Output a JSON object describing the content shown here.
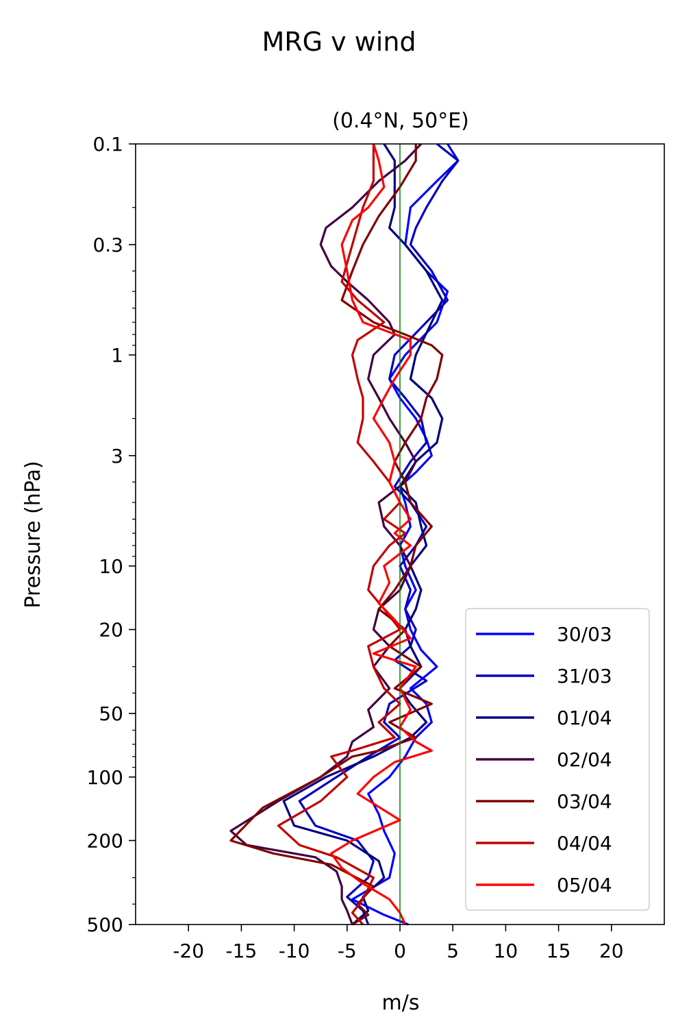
{
  "figure": {
    "suptitle": "MRG v wind"
  },
  "chart_data": {
    "type": "line",
    "title": "(0.4°N, 50°E)",
    "xlabel": "m/s",
    "ylabel": "Pressure (hPa)",
    "xlim": [
      -25,
      25
    ],
    "ylim": [
      500,
      0.1
    ],
    "yscale": "log",
    "y_inverted": true,
    "grid": false,
    "legend_position": "lower-right",
    "xticks": [
      -20,
      -15,
      -10,
      -5,
      0,
      5,
      10,
      15,
      20
    ],
    "xtick_labels": [
      "-20",
      "-15",
      "-10",
      "-5",
      "0",
      "5",
      "10",
      "15",
      "20"
    ],
    "yticks": [
      0.1,
      0.3,
      1,
      3,
      10,
      20,
      50,
      100,
      200,
      500
    ],
    "ytick_labels": [
      "0.1",
      "0.3",
      "1",
      "3",
      "10",
      "20",
      "50",
      "100",
      "200",
      "500"
    ],
    "zero_line": {
      "x": 0,
      "color": "#008000"
    },
    "series": [
      {
        "name": "30/03",
        "color": "#0000ff",
        "points": [
          [
            4.5,
            0.1
          ],
          [
            5.5,
            0.12
          ],
          [
            3.5,
            0.15
          ],
          [
            1.0,
            0.2
          ],
          [
            0.5,
            0.3
          ],
          [
            2.5,
            0.4
          ],
          [
            4.5,
            0.5
          ],
          [
            3.5,
            0.7
          ],
          [
            0.5,
            1.0
          ],
          [
            -1.0,
            1.3
          ],
          [
            0.0,
            1.6
          ],
          [
            1.5,
            2.0
          ],
          [
            2.5,
            2.5
          ],
          [
            3.0,
            3.0
          ],
          [
            1.5,
            3.6
          ],
          [
            0.0,
            4.2
          ],
          [
            0.5,
            5.0
          ],
          [
            1.0,
            6.5
          ],
          [
            0.0,
            8.0
          ],
          [
            0.5,
            10.0
          ],
          [
            1.5,
            13.0
          ],
          [
            0.5,
            16.0
          ],
          [
            1.0,
            20.0
          ],
          [
            2.0,
            25.0
          ],
          [
            3.5,
            30.0
          ],
          [
            1.0,
            38.0
          ],
          [
            2.5,
            45.0
          ],
          [
            3.0,
            55.0
          ],
          [
            1.5,
            65.0
          ],
          [
            0.5,
            80.0
          ],
          [
            -1.0,
            100.0
          ],
          [
            -3.0,
            120.0
          ],
          [
            -2.0,
            150.0
          ],
          [
            -1.5,
            180.0
          ],
          [
            -0.5,
            230.0
          ],
          [
            -1.0,
            300.0
          ],
          [
            -4.5,
            380.0
          ],
          [
            -1.5,
            450.0
          ],
          [
            0.8,
            500.0
          ]
        ]
      },
      {
        "name": "31/03",
        "color": "#0000c0",
        "points": [
          [
            3.5,
            0.1
          ],
          [
            5.5,
            0.12
          ],
          [
            4.0,
            0.15
          ],
          [
            2.5,
            0.2
          ],
          [
            1.5,
            0.25
          ],
          [
            1.0,
            0.3
          ],
          [
            3.0,
            0.4
          ],
          [
            4.5,
            0.55
          ],
          [
            2.5,
            0.7
          ],
          [
            -0.5,
            1.0
          ],
          [
            -1.0,
            1.3
          ],
          [
            0.5,
            1.6
          ],
          [
            2.0,
            2.0
          ],
          [
            2.5,
            2.6
          ],
          [
            1.0,
            3.2
          ],
          [
            -0.5,
            4.2
          ],
          [
            1.0,
            5.0
          ],
          [
            2.5,
            6.5
          ],
          [
            1.5,
            8.0
          ],
          [
            0.0,
            10.0
          ],
          [
            1.0,
            13.0
          ],
          [
            0.5,
            16.0
          ],
          [
            1.5,
            20.0
          ],
          [
            1.0,
            24.0
          ],
          [
            -0.5,
            28.0
          ],
          [
            2.5,
            35.0
          ],
          [
            -1.0,
            45.0
          ],
          [
            -1.5,
            55.0
          ],
          [
            0.0,
            65.0
          ],
          [
            -3.0,
            80.0
          ],
          [
            -6.0,
            100.0
          ],
          [
            -9.5,
            130.0
          ],
          [
            -8.0,
            170.0
          ],
          [
            -4.0,
            200.0
          ],
          [
            -2.5,
            250.0
          ],
          [
            -3.0,
            300.0
          ],
          [
            -5.0,
            370.0
          ],
          [
            -3.5,
            430.0
          ],
          [
            -3.0,
            500.0
          ]
        ]
      },
      {
        "name": "01/04",
        "color": "#000080",
        "points": [
          [
            -1.5,
            0.1
          ],
          [
            -0.5,
            0.12
          ],
          [
            -0.5,
            0.15
          ],
          [
            -0.5,
            0.2
          ],
          [
            -1.0,
            0.25
          ],
          [
            0.5,
            0.3
          ],
          [
            2.5,
            0.4
          ],
          [
            4.0,
            0.55
          ],
          [
            3.0,
            0.7
          ],
          [
            1.5,
            1.0
          ],
          [
            1.0,
            1.3
          ],
          [
            3.0,
            1.6
          ],
          [
            4.0,
            2.0
          ],
          [
            3.5,
            2.6
          ],
          [
            1.5,
            3.2
          ],
          [
            0.0,
            4.2
          ],
          [
            1.5,
            5.0
          ],
          [
            2.0,
            6.5
          ],
          [
            2.5,
            8.0
          ],
          [
            1.0,
            10.0
          ],
          [
            2.0,
            13.0
          ],
          [
            1.5,
            16.0
          ],
          [
            0.5,
            20.0
          ],
          [
            1.0,
            24.0
          ],
          [
            2.0,
            30.0
          ],
          [
            0.0,
            38.0
          ],
          [
            1.0,
            45.0
          ],
          [
            2.5,
            55.0
          ],
          [
            1.0,
            65.0
          ],
          [
            -2.5,
            80.0
          ],
          [
            -7.0,
            100.0
          ],
          [
            -11.0,
            130.0
          ],
          [
            -10.0,
            170.0
          ],
          [
            -5.0,
            200.0
          ],
          [
            -2.0,
            250.0
          ],
          [
            -1.5,
            300.0
          ],
          [
            -3.5,
            370.0
          ],
          [
            -3.0,
            430.0
          ],
          [
            -4.5,
            500.0
          ]
        ]
      },
      {
        "name": "02/04",
        "color": "#400040",
        "points": [
          [
            2.0,
            0.1
          ],
          [
            0.5,
            0.12
          ],
          [
            -2.0,
            0.15
          ],
          [
            -4.5,
            0.2
          ],
          [
            -7.0,
            0.25
          ],
          [
            -7.5,
            0.3
          ],
          [
            -6.5,
            0.38
          ],
          [
            -5.0,
            0.45
          ],
          [
            -3.0,
            0.55
          ],
          [
            -1.0,
            0.7
          ],
          [
            -0.5,
            0.8
          ],
          [
            -2.5,
            1.0
          ],
          [
            -3.0,
            1.3
          ],
          [
            -2.0,
            1.6
          ],
          [
            -1.0,
            2.0
          ],
          [
            0.5,
            2.6
          ],
          [
            1.5,
            3.2
          ],
          [
            0.5,
            4.0
          ],
          [
            -2.0,
            5.0
          ],
          [
            -1.5,
            6.5
          ],
          [
            0.0,
            8.0
          ],
          [
            1.0,
            10.0
          ],
          [
            0.0,
            13.0
          ],
          [
            -2.0,
            16.0
          ],
          [
            -2.5,
            20.0
          ],
          [
            -1.0,
            24.0
          ],
          [
            -2.5,
            30.0
          ],
          [
            -1.0,
            38.0
          ],
          [
            -3.0,
            48.0
          ],
          [
            -2.5,
            58.0
          ],
          [
            -4.5,
            68.0
          ],
          [
            -5.0,
            80.0
          ],
          [
            -7.5,
            100.0
          ],
          [
            -11.5,
            130.0
          ],
          [
            -16.0,
            180.0
          ],
          [
            -14.5,
            210.0
          ],
          [
            -8.0,
            240.0
          ],
          [
            -6.0,
            280.0
          ],
          [
            -5.5,
            330.0
          ],
          [
            -5.5,
            380.0
          ],
          [
            -5.0,
            430.0
          ],
          [
            -4.5,
            500.0
          ]
        ]
      },
      {
        "name": "03/04",
        "color": "#800000",
        "points": [
          [
            1.5,
            0.1
          ],
          [
            1.5,
            0.12
          ],
          [
            0.0,
            0.16
          ],
          [
            -2.0,
            0.22
          ],
          [
            -3.5,
            0.3
          ],
          [
            -4.5,
            0.4
          ],
          [
            -5.5,
            0.55
          ],
          [
            -2.5,
            0.7
          ],
          [
            0.5,
            0.8
          ],
          [
            3.0,
            0.9
          ],
          [
            4.0,
            1.0
          ],
          [
            3.5,
            1.3
          ],
          [
            2.5,
            1.6
          ],
          [
            2.0,
            2.0
          ],
          [
            0.5,
            2.6
          ],
          [
            -0.5,
            3.2
          ],
          [
            0.5,
            4.0
          ],
          [
            1.0,
            5.0
          ],
          [
            3.0,
            6.5
          ],
          [
            1.5,
            8.0
          ],
          [
            1.0,
            10.0
          ],
          [
            -0.5,
            13.0
          ],
          [
            -2.0,
            16.0
          ],
          [
            0.5,
            20.0
          ],
          [
            -1.0,
            24.0
          ],
          [
            2.0,
            30.0
          ],
          [
            -0.5,
            38.0
          ],
          [
            3.0,
            45.0
          ],
          [
            -1.0,
            55.0
          ],
          [
            1.5,
            65.0
          ],
          [
            -2.0,
            75.0
          ],
          [
            -4.5,
            80.0
          ],
          [
            -7.5,
            100.0
          ],
          [
            -13.0,
            140.0
          ],
          [
            -16.0,
            200.0
          ],
          [
            -12.0,
            230.0
          ],
          [
            -6.5,
            260.0
          ],
          [
            -2.5,
            330.0
          ],
          [
            -4.0,
            400.0
          ],
          [
            -3.0,
            450.0
          ],
          [
            -4.5,
            500.0
          ]
        ]
      },
      {
        "name": "04/04",
        "color": "#c00000",
        "points": [
          [
            -2.5,
            0.1
          ],
          [
            -2.5,
            0.12
          ],
          [
            -2.5,
            0.15
          ],
          [
            -3.5,
            0.2
          ],
          [
            -4.5,
            0.3
          ],
          [
            -5.5,
            0.45
          ],
          [
            -4.0,
            0.55
          ],
          [
            -1.5,
            0.7
          ],
          [
            -4.0,
            0.85
          ],
          [
            -4.5,
            1.0
          ],
          [
            -4.0,
            1.3
          ],
          [
            -3.5,
            1.6
          ],
          [
            -3.5,
            2.0
          ],
          [
            -4.0,
            2.6
          ],
          [
            -2.5,
            3.2
          ],
          [
            -1.0,
            4.0
          ],
          [
            0.0,
            5.0
          ],
          [
            -1.5,
            6.0
          ],
          [
            0.5,
            7.0
          ],
          [
            -1.0,
            8.0
          ],
          [
            -2.5,
            10.0
          ],
          [
            -3.0,
            13.0
          ],
          [
            -1.5,
            16.0
          ],
          [
            0.0,
            20.0
          ],
          [
            -3.0,
            24.0
          ],
          [
            -2.5,
            30.0
          ],
          [
            -1.5,
            38.0
          ],
          [
            0.0,
            45.0
          ],
          [
            -2.0,
            55.0
          ],
          [
            -0.5,
            65.0
          ],
          [
            -4.5,
            75.0
          ],
          [
            -6.5,
            80.0
          ],
          [
            -5.0,
            100.0
          ],
          [
            -7.5,
            130.0
          ],
          [
            -11.5,
            170.0
          ],
          [
            -9.5,
            210.0
          ],
          [
            -6.0,
            240.0
          ],
          [
            -2.5,
            300.0
          ],
          [
            -3.5,
            380.0
          ],
          [
            -4.5,
            440.0
          ],
          [
            -3.5,
            500.0
          ]
        ]
      },
      {
        "name": "05/04",
        "color": "#ff0000",
        "points": [
          [
            -2.5,
            0.1
          ],
          [
            -2.0,
            0.12
          ],
          [
            -1.5,
            0.16
          ],
          [
            -3.0,
            0.2
          ],
          [
            -4.5,
            0.23
          ],
          [
            -5.5,
            0.3
          ],
          [
            -5.0,
            0.4
          ],
          [
            -4.5,
            0.55
          ],
          [
            -3.5,
            0.7
          ],
          [
            1.0,
            0.85
          ],
          [
            1.0,
            1.0
          ],
          [
            -0.5,
            1.3
          ],
          [
            -1.5,
            1.6
          ],
          [
            -2.5,
            2.0
          ],
          [
            -1.0,
            2.6
          ],
          [
            -0.5,
            3.2
          ],
          [
            -1.0,
            4.0
          ],
          [
            0.0,
            5.0
          ],
          [
            1.0,
            6.0
          ],
          [
            -0.5,
            7.0
          ],
          [
            1.0,
            8.0
          ],
          [
            -1.5,
            10.0
          ],
          [
            -1.0,
            12.0
          ],
          [
            -2.0,
            15.0
          ],
          [
            -0.5,
            18.0
          ],
          [
            1.0,
            22.0
          ],
          [
            -2.5,
            26.0
          ],
          [
            1.5,
            30.0
          ],
          [
            0.0,
            38.0
          ],
          [
            1.0,
            48.0
          ],
          [
            0.0,
            58.0
          ],
          [
            1.5,
            68.0
          ],
          [
            3.0,
            75.0
          ],
          [
            -0.5,
            85.0
          ],
          [
            -2.5,
            100.0
          ],
          [
            -4.0,
            120.0
          ],
          [
            0.0,
            160.0
          ],
          [
            -4.5,
            200.0
          ],
          [
            -6.5,
            230.0
          ],
          [
            -5.5,
            270.0
          ],
          [
            -3.5,
            320.0
          ],
          [
            -1.0,
            380.0
          ],
          [
            0.0,
            440.0
          ],
          [
            0.5,
            500.0
          ]
        ]
      }
    ]
  }
}
